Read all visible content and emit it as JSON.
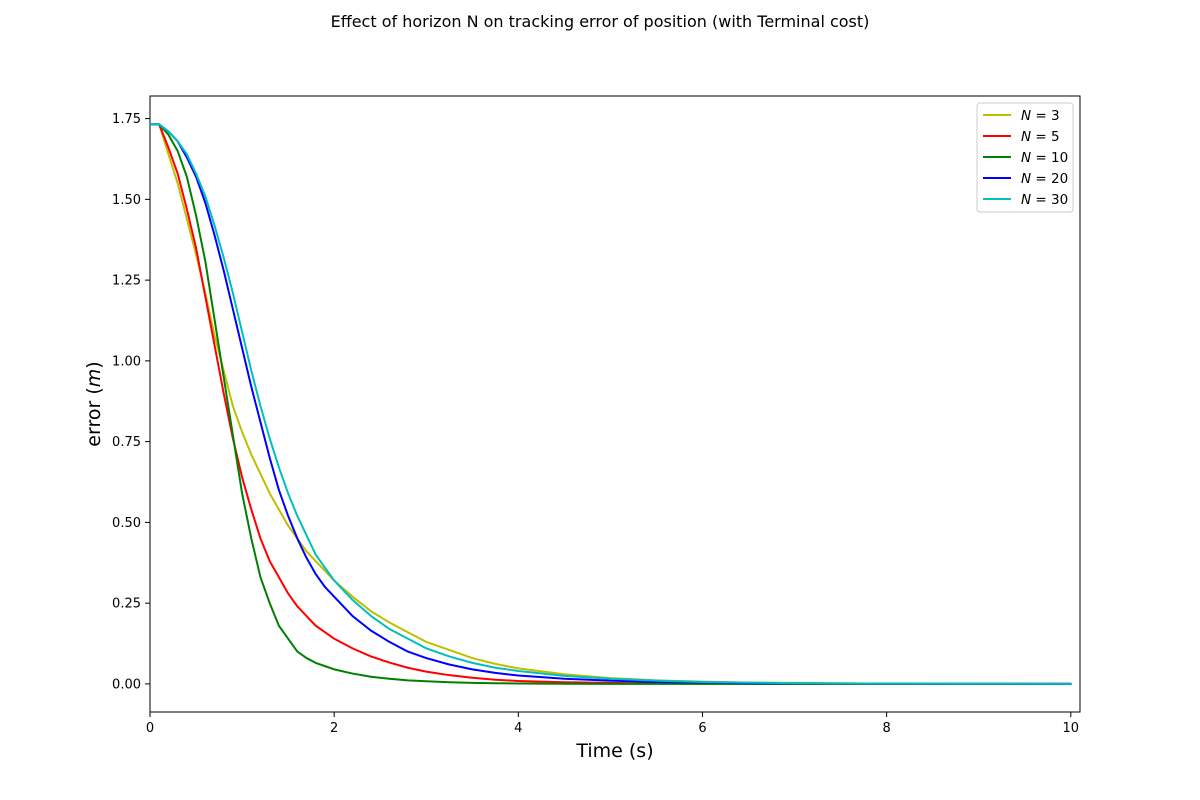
{
  "chart_data": {
    "type": "line",
    "title": "Effect of horizon N on tracking error of position (with Terminal cost)",
    "xlabel": "Time (s)",
    "ylabel": {
      "text": "error (",
      "var": "m",
      "suffix": ")"
    },
    "xlim": [
      0,
      10.1
    ],
    "ylim": [
      -0.087,
      1.82
    ],
    "xticks": [
      0,
      2,
      4,
      6,
      8,
      10
    ],
    "yticks": [
      0.0,
      0.25,
      0.5,
      0.75,
      1.0,
      1.25,
      1.5,
      1.75
    ],
    "ytick_labels": [
      "0.00",
      "0.25",
      "0.50",
      "0.75",
      "1.00",
      "1.25",
      "1.50",
      "1.75"
    ],
    "grid": false,
    "legend_position": "top-right",
    "x": [
      0,
      0.1,
      0.2,
      0.3,
      0.4,
      0.5,
      0.6,
      0.7,
      0.8,
      0.9,
      1.0,
      1.1,
      1.2,
      1.3,
      1.4,
      1.5,
      1.6,
      1.7,
      1.8,
      1.9,
      2.0,
      2.2,
      2.4,
      2.6,
      2.8,
      3.0,
      3.25,
      3.5,
      3.75,
      4.0,
      4.5,
      5.0,
      5.5,
      6.0,
      6.5,
      7.0,
      8.0,
      9.0,
      10.0
    ],
    "series": [
      {
        "name": "N = 3",
        "label_var": "N",
        "label_value": "3",
        "color": "#bfbf00",
        "values": [
          1.732,
          1.732,
          1.64,
          1.55,
          1.44,
          1.33,
          1.21,
          1.08,
          0.97,
          0.86,
          0.78,
          0.71,
          0.65,
          0.59,
          0.54,
          0.49,
          0.45,
          0.41,
          0.38,
          0.35,
          0.32,
          0.27,
          0.225,
          0.19,
          0.16,
          0.13,
          0.105,
          0.08,
          0.062,
          0.048,
          0.03,
          0.018,
          0.011,
          0.007,
          0.004,
          0.003,
          0.001,
          0.0005,
          0.0002
        ]
      },
      {
        "name": "N = 5",
        "label_var": "N",
        "label_value": "5",
        "color": "#ff0000",
        "values": [
          1.732,
          1.732,
          1.66,
          1.58,
          1.47,
          1.35,
          1.2,
          1.05,
          0.9,
          0.76,
          0.64,
          0.54,
          0.45,
          0.38,
          0.33,
          0.28,
          0.24,
          0.21,
          0.18,
          0.16,
          0.14,
          0.11,
          0.085,
          0.066,
          0.05,
          0.038,
          0.027,
          0.019,
          0.013,
          0.009,
          0.005,
          0.003,
          0.0015,
          0.0008,
          0.0004,
          0.0002,
          0.0001,
          0.0,
          0.0
        ]
      },
      {
        "name": "N = 10",
        "label_var": "N",
        "label_value": "10",
        "color": "#008000",
        "values": [
          1.732,
          1.732,
          1.7,
          1.65,
          1.57,
          1.45,
          1.31,
          1.13,
          0.95,
          0.77,
          0.59,
          0.45,
          0.33,
          0.25,
          0.18,
          0.14,
          0.1,
          0.08,
          0.065,
          0.055,
          0.045,
          0.032,
          0.022,
          0.016,
          0.011,
          0.008,
          0.005,
          0.003,
          0.002,
          0.0012,
          0.0005,
          0.0002,
          0.0001,
          0.0,
          0.0,
          0.0,
          0.0,
          0.0,
          0.0
        ]
      },
      {
        "name": "N = 20",
        "label_var": "N",
        "label_value": "20",
        "color": "#0000ff",
        "values": [
          1.732,
          1.732,
          1.71,
          1.68,
          1.63,
          1.57,
          1.49,
          1.39,
          1.28,
          1.16,
          1.04,
          0.92,
          0.81,
          0.7,
          0.6,
          0.52,
          0.45,
          0.39,
          0.34,
          0.3,
          0.27,
          0.21,
          0.165,
          0.13,
          0.1,
          0.08,
          0.06,
          0.045,
          0.034,
          0.026,
          0.016,
          0.01,
          0.006,
          0.004,
          0.002,
          0.0015,
          0.0006,
          0.0002,
          0.0001
        ]
      },
      {
        "name": "N = 30",
        "label_var": "N",
        "label_value": "30",
        "color": "#00bfbf",
        "values": [
          1.732,
          1.732,
          1.71,
          1.68,
          1.64,
          1.58,
          1.51,
          1.42,
          1.32,
          1.21,
          1.09,
          0.97,
          0.86,
          0.76,
          0.67,
          0.59,
          0.52,
          0.46,
          0.4,
          0.36,
          0.32,
          0.26,
          0.21,
          0.17,
          0.14,
          0.11,
          0.085,
          0.065,
          0.05,
          0.04,
          0.025,
          0.016,
          0.01,
          0.006,
          0.004,
          0.0025,
          0.001,
          0.0004,
          0.0002
        ]
      }
    ]
  }
}
